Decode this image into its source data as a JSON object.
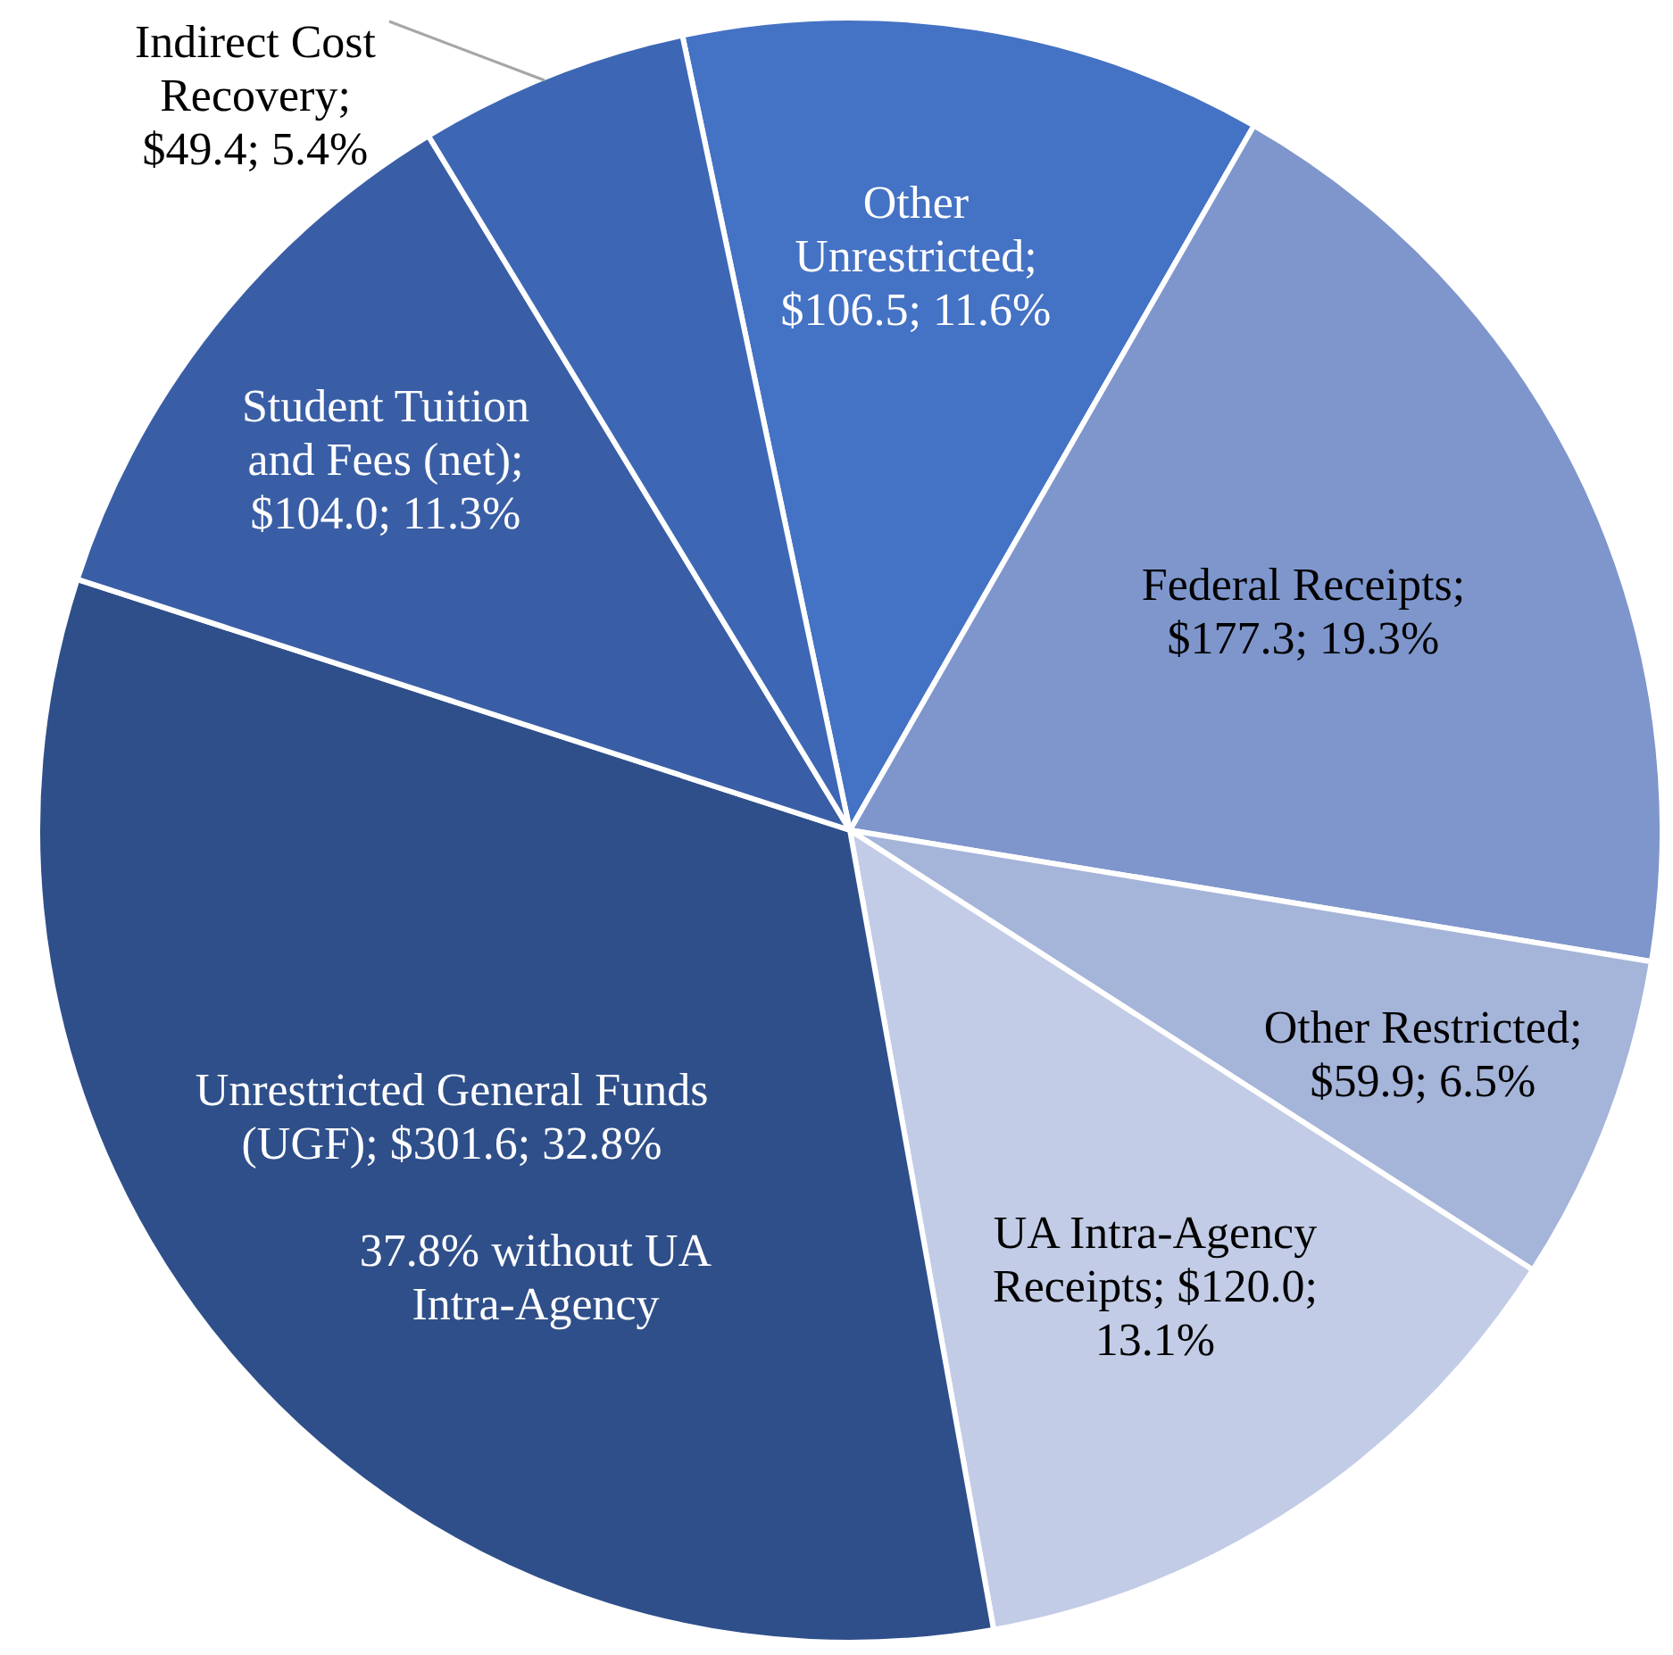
{
  "chart_data": {
    "type": "pie",
    "categories": [
      "Other Unrestricted",
      "Federal Receipts",
      "Other Restricted",
      "UA Intra-Agency Receipts",
      "Unrestricted General Funds (UGF)",
      "Student Tuition and Fees (net)",
      "Indirect Cost Recovery"
    ],
    "values": [
      106.5,
      177.3,
      59.9,
      120.0,
      301.6,
      104.0,
      49.4
    ],
    "value_labels": [
      "; $106.5; 11.6%",
      "; $177.3; 19.3%",
      "; $59.9; 6.5%",
      "; $120.0; 13.1%",
      "; $301.6; 32.8%",
      "; $104.0; 11.3%",
      "; $49.4; 5.4%"
    ],
    "colors": [
      "#4472c4",
      "#7f96cc",
      "#a5b4d9",
      "#c2cce6",
      "#2f4f8a",
      "#3a5ea6",
      "#3d67b4"
    ],
    "annotations": [
      "37.8% without UA Intra-Agency"
    ]
  }
}
